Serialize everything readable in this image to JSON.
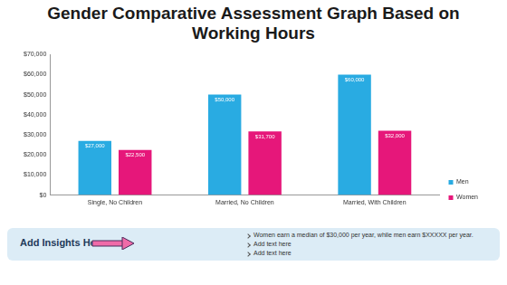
{
  "chart_data": {
    "type": "bar",
    "title": "Gender Comparative Assessment Graph Based on Working Hours",
    "categories": [
      "Single, No Children",
      "Married, No Children",
      "Married, With Children"
    ],
    "series": [
      {
        "name": "Men",
        "color": "#29abe2",
        "values": [
          27000,
          50000,
          60000
        ],
        "value_labels": [
          "$27,000",
          "$50,000",
          "$60,000"
        ]
      },
      {
        "name": "Women",
        "color": "#e6177a",
        "values": [
          22500,
          31700,
          32000
        ],
        "value_labels": [
          "$22,500",
          "$31,700",
          "$32,000"
        ]
      }
    ],
    "ylim": [
      0,
      70000
    ],
    "yticks": [
      {
        "value": 0,
        "label": "$0"
      },
      {
        "value": 10000,
        "label": "$10,000"
      },
      {
        "value": 20000,
        "label": "$20,000"
      },
      {
        "value": 30000,
        "label": "$30,000"
      },
      {
        "value": 40000,
        "label": "$40,000"
      },
      {
        "value": 50000,
        "label": "$50,000"
      },
      {
        "value": 60000,
        "label": "$60,000"
      },
      {
        "value": 70000,
        "label": "$70,000"
      }
    ],
    "grid": false,
    "legend": "right",
    "data_labels": true
  },
  "insights": {
    "heading": "Add Insights Here",
    "items": [
      "Women earn a median of $30,000 per year, while men earn $XXXXX per year.",
      "Add text here",
      "Add text here"
    ]
  }
}
